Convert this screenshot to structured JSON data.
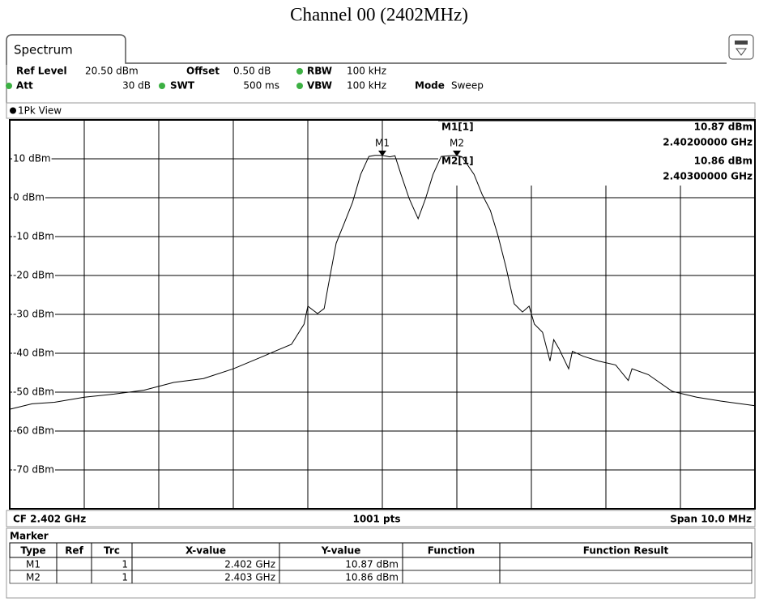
{
  "title": "Channel 00 (2402MHz)",
  "tab": "Spectrum",
  "settings": [
    {
      "label": "Ref Level",
      "value": "20.50 dBm"
    },
    {
      "label": "Offset",
      "value": "0.50 dB"
    },
    {
      "label": "RBW",
      "value": "100 kHz"
    },
    {
      "label": "Att",
      "value": "30 dB"
    },
    {
      "label": "SWT",
      "value": "500 ms"
    },
    {
      "label": "VBW",
      "value": "100 kHz"
    },
    {
      "label": "Mode",
      "value": "Sweep"
    }
  ],
  "view": "1Pk View",
  "chart_data": {
    "type": "line",
    "color": "#000000",
    "x": [
      2.397,
      2.3973,
      2.3976,
      2.398,
      2.3984,
      2.3988,
      2.3992,
      2.3996,
      2.4,
      2.4004,
      2.40057,
      2.40078,
      2.40095,
      2.401,
      2.40113,
      2.40122,
      2.40127,
      2.40138,
      2.40149,
      2.4016,
      2.40171,
      2.40182,
      2.4019,
      2.402,
      2.4021,
      2.40217,
      2.40225,
      2.40236,
      2.40248,
      2.40258,
      2.40268,
      2.40279,
      2.4029,
      2.403,
      2.40307,
      2.40323,
      2.40334,
      2.40345,
      2.40355,
      2.40366,
      2.40377,
      2.40388,
      2.40397,
      2.40404,
      2.40415,
      2.40425,
      2.4043,
      2.40437,
      2.4045,
      2.40455,
      2.4047,
      2.4049,
      2.40513,
      2.4053,
      2.40535,
      2.40557,
      2.40589,
      2.40622,
      2.40654,
      2.407
    ],
    "values": [
      -54.4,
      -53,
      -52.6,
      -51.3,
      -50.5,
      -49.5,
      -47.5,
      -46.5,
      -44,
      -40.8,
      -39.4,
      -37.7,
      -32.5,
      -27.9,
      -29.8,
      -28.5,
      -23.1,
      -11.7,
      -6.5,
      -1.2,
      6,
      10.6,
      10.9,
      10.87,
      10.5,
      10.8,
      6,
      -0.2,
      -5.4,
      -0.2,
      6,
      10.6,
      10.8,
      10.86,
      10.5,
      6,
      0.8,
      -3.3,
      -9.6,
      -17.9,
      -27.3,
      -29.4,
      -27.9,
      -32.5,
      -34.6,
      -42,
      -36.5,
      -38.8,
      -44,
      -39.5,
      -40.8,
      -42,
      -43,
      -47,
      -44,
      -45.5,
      -49.8,
      -51.3,
      -52.3,
      -53.5
    ],
    "xlim": [
      2.397,
      2.407
    ],
    "ylim": [
      -80,
      20
    ],
    "yticks": [
      {
        "value": 10,
        "label": "10 dBm"
      },
      {
        "value": 0,
        "label": "0 dBm"
      },
      {
        "value": -10,
        "label": "-10 dBm"
      },
      {
        "value": -20,
        "label": "-20 dBm"
      },
      {
        "value": -30,
        "label": "-30 dBm"
      },
      {
        "value": -40,
        "label": "-40 dBm"
      },
      {
        "value": -50,
        "label": "-50 dBm"
      },
      {
        "value": -60,
        "label": "-60 dBm"
      },
      {
        "value": -70,
        "label": "-70 dBm"
      }
    ],
    "grid": true,
    "markers": [
      {
        "label": "M1",
        "x": 2.402,
        "y": 10.87
      },
      {
        "label": "M2",
        "x": 2.403,
        "y": 10.86
      }
    ],
    "readouts": [
      {
        "name": "M1[1]",
        "level": "10.87 dBm",
        "freq": "2.40200000 GHz"
      },
      {
        "name": "M2[1]",
        "level": "10.86 dBm",
        "freq": "2.40300000 GHz"
      }
    ]
  },
  "footer": {
    "center": "CF 2.402 GHz",
    "points": "1001 pts",
    "span": "Span 10.0 MHz"
  },
  "marker_table": {
    "title": "Marker",
    "columns": [
      "Type",
      "Ref",
      "Trc",
      "X-value",
      "Y-value",
      "Function",
      "Function Result"
    ],
    "rows": [
      {
        "type": "M1",
        "trc": "1",
        "x": "2.402 GHz",
        "y": "10.87 dBm"
      },
      {
        "type": "M2",
        "trc": "1",
        "x": "2.403 GHz",
        "y": "10.86 dBm"
      }
    ]
  }
}
